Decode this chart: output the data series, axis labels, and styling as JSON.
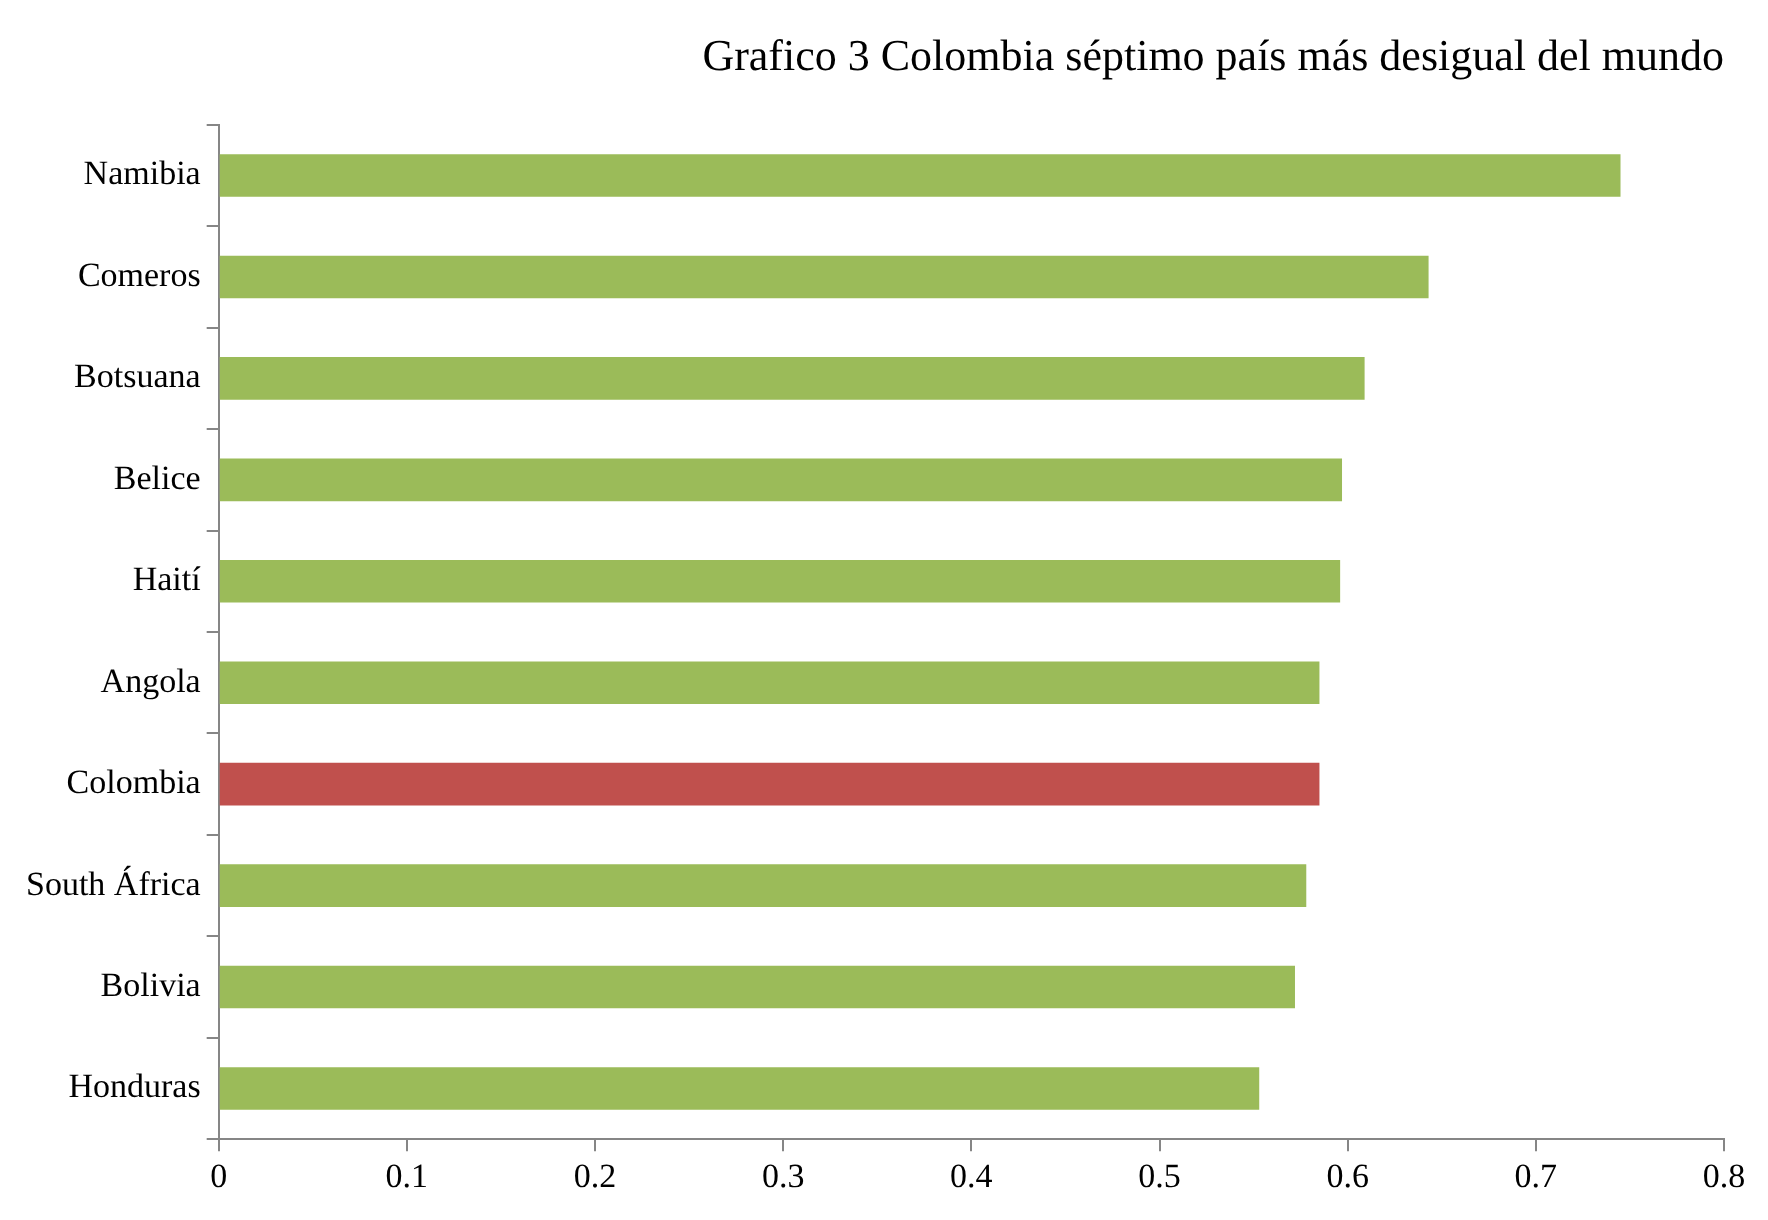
{
  "chart_data": {
    "type": "bar",
    "orientation": "horizontal",
    "title": "Grafico 3 Colombia séptimo país más desigual del mundo",
    "categories": [
      "Namibia",
      "Comeros",
      "Botsuana",
      "Belice",
      "Haití",
      "Angola",
      "Colombia",
      "South África",
      "Bolivia",
      "Honduras"
    ],
    "values": [
      0.745,
      0.643,
      0.609,
      0.597,
      0.596,
      0.585,
      0.585,
      0.578,
      0.572,
      0.553
    ],
    "colors": [
      "#9bbb59",
      "#9bbb59",
      "#9bbb59",
      "#9bbb59",
      "#9bbb59",
      "#9bbb59",
      "#c0504d",
      "#9bbb59",
      "#9bbb59",
      "#9bbb59"
    ],
    "xlim": [
      0,
      0.8
    ],
    "xticks": [
      0,
      0.1,
      0.2,
      0.3,
      0.4,
      0.5,
      0.6,
      0.7,
      0.8
    ],
    "grid": false,
    "legend": false
  }
}
